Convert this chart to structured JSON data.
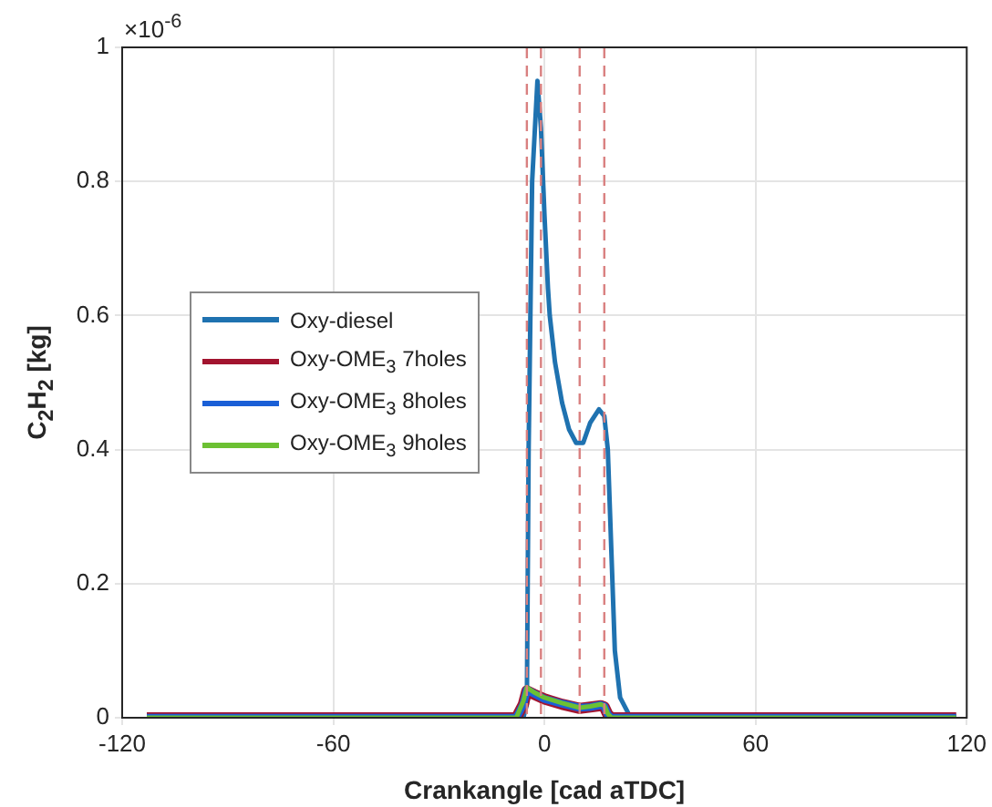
{
  "chart_data": {
    "type": "line",
    "xlabel": "Crankangle [cad aTDC]",
    "ylabel": "C$_{2}$H$_{2}$ [kg]",
    "annotations": [
      "×10$^{-6}$"
    ],
    "xlim": [
      -120,
      120
    ],
    "xticks": [
      -120,
      -60,
      0,
      60,
      120
    ],
    "ylim": [
      0,
      1
    ],
    "yticks": [
      0,
      0.2,
      0.4,
      0.6,
      0.8,
      1
    ],
    "grid": true,
    "legend": "left",
    "marker": "none",
    "line_style": "solid",
    "ref_lines": [
      {
        "axis": "x",
        "value": -5,
        "color": "#d98080",
        "line_style": "dashed"
      },
      {
        "axis": "x",
        "value": -1,
        "color": "#d98080",
        "line_style": "dashed"
      },
      {
        "axis": "x",
        "value": 10,
        "color": "#d98080",
        "line_style": "dashed"
      },
      {
        "axis": "x",
        "value": 17,
        "color": "#d98080",
        "line_style": "dashed"
      }
    ],
    "series": [
      {
        "name": "Oxy-diesel",
        "color": "#1f72b0",
        "x": [
          -113,
          -6,
          -5,
          -4.5,
          -3.5,
          -2,
          -1,
          0,
          1,
          1.5,
          3,
          5,
          7,
          9,
          11,
          13,
          15.5,
          17,
          18,
          19,
          20,
          21.5,
          24,
          28,
          117
        ],
        "values": [
          0,
          0,
          0.02,
          0.4,
          0.8,
          0.95,
          0.88,
          0.75,
          0.64,
          0.6,
          0.53,
          0.47,
          0.43,
          0.41,
          0.41,
          0.44,
          0.46,
          0.45,
          0.4,
          0.25,
          0.1,
          0.03,
          0.005,
          0,
          0
        ]
      },
      {
        "name": "Oxy-OME$_{3}$ 7holes",
        "color": "#a2142f",
        "x": [
          -113,
          -8,
          -6,
          -5,
          -3,
          0,
          5,
          10,
          13,
          16,
          17,
          18,
          19,
          117
        ],
        "values": [
          0,
          0,
          0.02,
          0.04,
          0.035,
          0.028,
          0.02,
          0.014,
          0.016,
          0.018,
          0.016,
          0.005,
          0,
          0
        ]
      },
      {
        "name": "Oxy-OME$_{3}$ 8holes",
        "color": "#1a5fd6",
        "x": [
          -113,
          -8,
          -6,
          -5,
          -3,
          0,
          5,
          10,
          13,
          16,
          17,
          18,
          19,
          117
        ],
        "values": [
          0,
          0,
          0.02,
          0.042,
          0.036,
          0.028,
          0.021,
          0.015,
          0.016,
          0.019,
          0.017,
          0.005,
          0,
          0
        ]
      },
      {
        "name": "Oxy-OME$_{3}$ 9holes",
        "color": "#6cc033",
        "x": [
          -113,
          -8,
          -6,
          -5,
          -3,
          0,
          5,
          10,
          13,
          16,
          17,
          18,
          19,
          117
        ],
        "values": [
          0,
          0,
          0.025,
          0.045,
          0.038,
          0.03,
          0.022,
          0.015,
          0.017,
          0.02,
          0.018,
          0.006,
          0,
          0
        ]
      }
    ]
  }
}
